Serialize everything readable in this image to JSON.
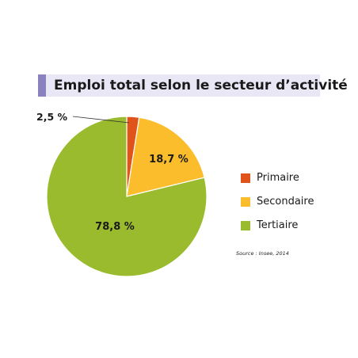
{
  "chart_data": {
    "type": "pie",
    "title": "Emploi total selon le secteur d’activité",
    "categories": [
      "Primaire",
      "Secondaire",
      "Tertiaire"
    ],
    "values": [
      2.5,
      18.7,
      78.8
    ],
    "data_labels": [
      "2,5 %",
      "18,7 %",
      "78,8 %"
    ],
    "colors": [
      "#e0541c",
      "#fbbd2c",
      "#9bbb2e"
    ],
    "legend_placement": "right",
    "source": "Source : Insee, 2014"
  }
}
